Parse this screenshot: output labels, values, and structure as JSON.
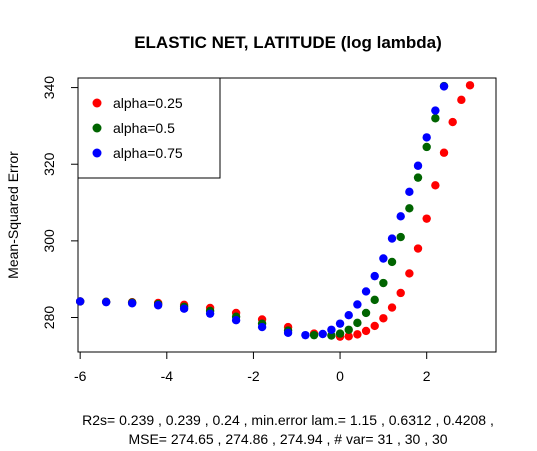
{
  "chart_data": {
    "type": "scatter",
    "title": "ELASTIC NET, LATITUDE (log lambda)",
    "xlabel": "",
    "ylabel": "Mean-Squared Error",
    "xlim": [
      -6.05,
      3.6
    ],
    "ylim": [
      271,
      342.5
    ],
    "x_ticks": [
      -6,
      -4,
      -2,
      0,
      2
    ],
    "y_ticks": [
      280,
      300,
      320,
      340
    ],
    "grid": false,
    "legend_position": "top-left",
    "series": [
      {
        "name": "alpha=0.25",
        "color": "#ff0000",
        "points": [
          [
            -6.0,
            284.2
          ],
          [
            -5.4,
            284.1
          ],
          [
            -4.8,
            284.0
          ],
          [
            -4.2,
            283.8
          ],
          [
            -3.6,
            283.3
          ],
          [
            -3.0,
            282.5
          ],
          [
            -2.4,
            281.2
          ],
          [
            -1.8,
            279.5
          ],
          [
            -1.2,
            277.5
          ],
          [
            -0.6,
            275.8
          ],
          [
            0.0,
            275.0
          ],
          [
            0.2,
            275.1
          ],
          [
            0.4,
            275.6
          ],
          [
            0.6,
            276.5
          ],
          [
            0.8,
            277.8
          ],
          [
            1.0,
            279.8
          ],
          [
            1.2,
            282.6
          ],
          [
            1.4,
            286.4
          ],
          [
            1.6,
            291.5
          ],
          [
            1.8,
            298.0
          ],
          [
            2.0,
            305.8
          ],
          [
            2.2,
            314.5
          ],
          [
            2.4,
            323.0
          ],
          [
            2.6,
            331.0
          ],
          [
            2.8,
            336.8
          ],
          [
            3.0,
            340.6
          ]
        ]
      },
      {
        "name": "alpha=0.5",
        "color": "#006400",
        "points": [
          [
            -6.0,
            284.2
          ],
          [
            -5.4,
            284.1
          ],
          [
            -4.8,
            283.9
          ],
          [
            -4.2,
            283.5
          ],
          [
            -3.6,
            282.8
          ],
          [
            -3.0,
            281.7
          ],
          [
            -2.4,
            280.2
          ],
          [
            -1.8,
            278.4
          ],
          [
            -1.2,
            276.6
          ],
          [
            -0.6,
            275.4
          ],
          [
            -0.2,
            275.3
          ],
          [
            0.0,
            275.8
          ],
          [
            0.2,
            276.8
          ],
          [
            0.4,
            278.6
          ],
          [
            0.6,
            281.2
          ],
          [
            0.8,
            284.6
          ],
          [
            1.0,
            289.0
          ],
          [
            1.2,
            294.5
          ],
          [
            1.4,
            301.0
          ],
          [
            1.6,
            308.5
          ],
          [
            1.8,
            316.5
          ],
          [
            2.0,
            324.5
          ],
          [
            2.2,
            332.0
          ],
          [
            2.4,
            340.4
          ]
        ]
      },
      {
        "name": "alpha=0.75",
        "color": "#0000ff",
        "points": [
          [
            -6.0,
            284.2
          ],
          [
            -5.4,
            284.0
          ],
          [
            -4.8,
            283.7
          ],
          [
            -4.2,
            283.2
          ],
          [
            -3.6,
            282.3
          ],
          [
            -3.0,
            281.0
          ],
          [
            -2.4,
            279.3
          ],
          [
            -1.8,
            277.5
          ],
          [
            -1.2,
            276.0
          ],
          [
            -0.8,
            275.4
          ],
          [
            -0.4,
            275.7
          ],
          [
            -0.2,
            276.8
          ],
          [
            0.0,
            278.4
          ],
          [
            0.2,
            280.6
          ],
          [
            0.4,
            283.4
          ],
          [
            0.6,
            286.8
          ],
          [
            0.8,
            290.8
          ],
          [
            1.0,
            295.4
          ],
          [
            1.2,
            300.6
          ],
          [
            1.4,
            306.4
          ],
          [
            1.6,
            312.8
          ],
          [
            1.8,
            319.6
          ],
          [
            2.0,
            327.0
          ],
          [
            2.2,
            334.0
          ],
          [
            2.4,
            340.3
          ]
        ]
      }
    ],
    "footer_line1": "R2s= 0.239 , 0.239 , 0.24 , min.error lam.= 1.15 , 0.6312 , 0.4208 ,",
    "footer_line2": "MSE= 274.65 , 274.86 , 274.94 , # var= 31 , 30 , 30"
  }
}
